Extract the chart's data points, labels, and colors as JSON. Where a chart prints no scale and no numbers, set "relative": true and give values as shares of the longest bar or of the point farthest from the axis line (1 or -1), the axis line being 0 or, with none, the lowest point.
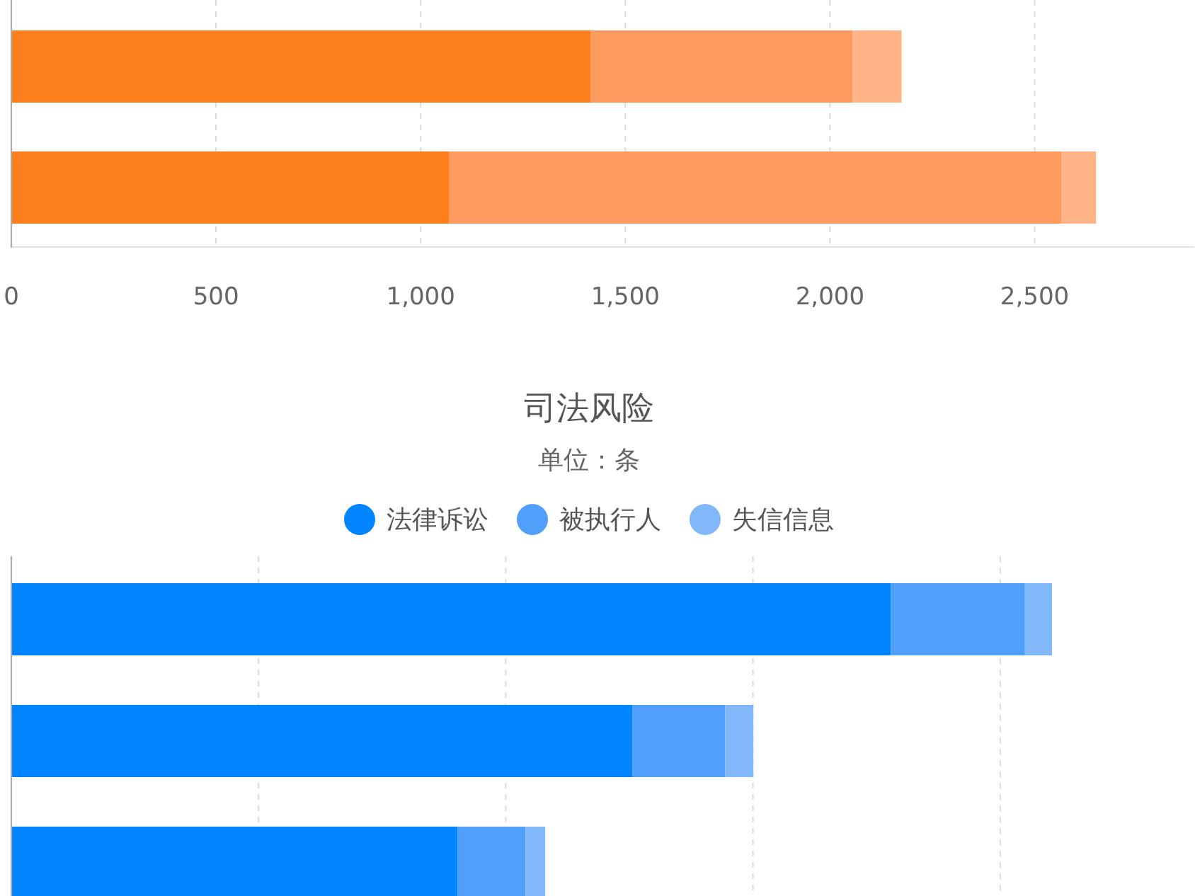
{
  "chart_data": [
    {
      "type": "bar",
      "orientation": "horizontal",
      "stacked": true,
      "categories": [
        null,
        null
      ],
      "series": [
        {
          "color": "#fd7f1b",
          "values": [
            1415,
            1070
          ]
        },
        {
          "color": "#fe9a5d",
          "values": [
            640,
            1495
          ]
        },
        {
          "color": "#ffb386",
          "values": [
            120,
            85
          ]
        }
      ],
      "xlim": [
        0,
        2890
      ],
      "xticks": [
        0,
        500,
        {
          "value": 1000,
          "label": "1,000"
        },
        {
          "value": 1500,
          "label": "1,500"
        },
        {
          "value": 2000,
          "label": "2,000"
        },
        {
          "value": 2500,
          "label": "2,500"
        }
      ],
      "grid": "x",
      "tick_labels": "x"
    },
    {
      "type": "bar",
      "orientation": "horizontal",
      "stacked": true,
      "relative": true,
      "title": "司法风险",
      "subtitle": "单位：条",
      "categories": [
        null,
        null,
        null
      ],
      "series": [
        {
          "name": "法律诉讼",
          "color": "#0084ff",
          "values": [
            0.845,
            0.597,
            0.429
          ]
        },
        {
          "name": "被执行人",
          "color": "#4f9ffb",
          "values": [
            0.129,
            0.089,
            0.065
          ]
        },
        {
          "name": "失信信息",
          "color": "#80b8fa",
          "values": [
            0.026,
            0.027,
            0.019
          ]
        }
      ],
      "grid": "x",
      "legend": "top",
      "tick_labels": false
    }
  ]
}
